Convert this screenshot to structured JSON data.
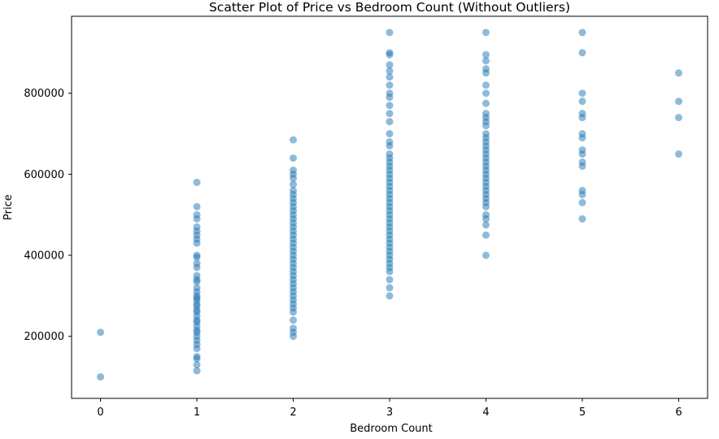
{
  "chart_data": {
    "type": "scatter",
    "title": "Scatter Plot of Price vs Bedroom Count (Without Outliers)",
    "xlabel": "Bedroom Count",
    "ylabel": "Price",
    "xlim": [
      -0.3,
      6.3
    ],
    "ylim": [
      47000,
      990000
    ],
    "xticks": [
      0,
      1,
      2,
      3,
      4,
      5,
      6
    ],
    "xtick_labels": [
      "0",
      "1",
      "2",
      "3",
      "4",
      "5",
      "6"
    ],
    "yticks": [
      200000,
      400000,
      600000,
      800000
    ],
    "ytick_labels": [
      "200000",
      "400000",
      "600000",
      "800000"
    ],
    "grid": false,
    "legend": "none",
    "marker_color": "#1f77b4",
    "marker_alpha": 0.5,
    "points": [
      {
        "x": 0,
        "y": [
          210000,
          100000
        ]
      },
      {
        "x": 1,
        "y": [
          580000,
          520000,
          500000,
          490000,
          470000,
          460000,
          450000,
          440000,
          430000,
          400000,
          395000,
          380000,
          370000,
          350000,
          340000,
          335000,
          320000,
          310000,
          300000,
          295000,
          290000,
          280000,
          275000,
          265000,
          260000,
          250000,
          240000,
          235000,
          225000,
          215000,
          210000,
          200000,
          190000,
          180000,
          170000,
          150000,
          145000,
          130000,
          115000
        ]
      },
      {
        "x": 2,
        "y": [
          685000,
          640000,
          610000,
          600000,
          590000,
          575000,
          560000,
          550000,
          540000,
          530000,
          520000,
          510000,
          500000,
          490000,
          480000,
          470000,
          460000,
          450000,
          440000,
          430000,
          420000,
          410000,
          400000,
          390000,
          380000,
          370000,
          360000,
          350000,
          340000,
          330000,
          320000,
          310000,
          300000,
          290000,
          280000,
          270000,
          260000,
          240000,
          220000,
          210000,
          200000
        ]
      },
      {
        "x": 3,
        "y": [
          950000,
          900000,
          895000,
          870000,
          855000,
          840000,
          820000,
          800000,
          790000,
          770000,
          750000,
          730000,
          700000,
          680000,
          670000,
          650000,
          640000,
          630000,
          620000,
          610000,
          600000,
          590000,
          580000,
          570000,
          560000,
          550000,
          540000,
          530000,
          520000,
          510000,
          500000,
          490000,
          480000,
          470000,
          460000,
          450000,
          440000,
          430000,
          420000,
          410000,
          400000,
          390000,
          380000,
          370000,
          360000,
          340000,
          320000,
          300000
        ]
      },
      {
        "x": 4,
        "y": [
          950000,
          895000,
          880000,
          860000,
          850000,
          820000,
          800000,
          775000,
          750000,
          740000,
          730000,
          720000,
          700000,
          690000,
          680000,
          670000,
          660000,
          650000,
          640000,
          630000,
          620000,
          610000,
          600000,
          590000,
          580000,
          570000,
          560000,
          550000,
          540000,
          530000,
          520000,
          500000,
          490000,
          475000,
          450000,
          400000
        ]
      },
      {
        "x": 5,
        "y": [
          950000,
          900000,
          800000,
          780000,
          750000,
          740000,
          700000,
          690000,
          660000,
          650000,
          630000,
          620000,
          560000,
          550000,
          530000,
          490000
        ]
      },
      {
        "x": 6,
        "y": [
          850000,
          780000,
          740000,
          650000
        ]
      }
    ]
  }
}
